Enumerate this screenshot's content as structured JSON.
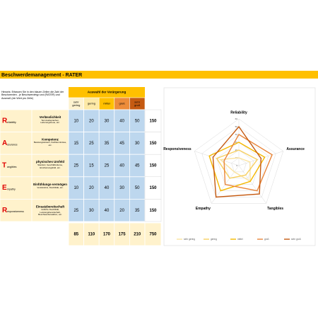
{
  "header": {
    "title": "Beschwerdemanagement - RATER"
  },
  "instructions": "Hinweis: Erfassen Sie in den blauen Zellen die Zahl der Beschwerden - je Beschwerdetyp und (RATER) und Ausmaß (ein Wert pro Zelle)",
  "table": {
    "group_header": "Auswahl der Verärgerung",
    "columns": [
      {
        "label": "sehr gering",
        "color": "#fdf2cf"
      },
      {
        "label": "gering",
        "color": "#fde9a6"
      },
      {
        "label": "mittel",
        "color": "#ffc000"
      },
      {
        "label": "groß",
        "color": "#ed8c3a"
      },
      {
        "label": "sehr groß",
        "color": "#c55a11"
      }
    ],
    "rows": [
      {
        "letter": "R",
        "word": "eliability",
        "title": "Verlässlichkeit",
        "description": "Terminabsprachen, Lieferungstreue, etc.",
        "values": [
          10,
          20,
          30,
          40,
          50
        ],
        "total": 150
      },
      {
        "letter": "A",
        "word": "ssurance",
        "title": "Kompetenz",
        "description": "Beratungswissen, Fachkenntnisse, etc.",
        "values": [
          15,
          25,
          35,
          45,
          30
        ],
        "total": 150
      },
      {
        "letter": "T",
        "word": "angibles",
        "title": "physisches Umfeld",
        "description": "Standort, Geschäftsräume, Erscheinungsbild, etc.",
        "values": [
          25,
          15,
          25,
          40,
          45
        ],
        "total": 150
      },
      {
        "letter": "E",
        "word": "mpathy",
        "title": "Einfühlungs-vermögen",
        "description": "Verständnis, Flexibilität, etc.",
        "values": [
          10,
          20,
          40,
          30,
          50
        ],
        "total": 150
      },
      {
        "letter": "R",
        "word": "esponsiveness",
        "title": "Einsatzbereitschaft",
        "description": "zeitliche Flexibilität, Leistungsbereitschaft, Beschwerdereaktion, etc.",
        "values": [
          25,
          30,
          40,
          20,
          35
        ],
        "total": 150
      }
    ],
    "totals": [
      85,
      110,
      170,
      175,
      210
    ],
    "grand_total": 750
  },
  "chart_data": {
    "type": "radar",
    "categories": [
      "Reliability",
      "Assurance",
      "Tangibles",
      "Empathy",
      "Responsiveness"
    ],
    "series": [
      {
        "name": "sehr gering",
        "color": "#fbe3a0",
        "values": [
          10,
          15,
          25,
          10,
          25
        ]
      },
      {
        "name": "gering",
        "color": "#f7d061",
        "values": [
          20,
          25,
          15,
          20,
          30
        ]
      },
      {
        "name": "mittel",
        "color": "#f5b800",
        "values": [
          30,
          35,
          25,
          40,
          40
        ]
      },
      {
        "name": "groß",
        "color": "#e8853a",
        "values": [
          40,
          45,
          40,
          30,
          20
        ]
      },
      {
        "name": "sehr groß",
        "color": "#c55a11",
        "values": [
          50,
          30,
          45,
          50,
          35
        ]
      }
    ],
    "rlim": [
      0,
      60
    ],
    "rticks": [
      0,
      10,
      20,
      30,
      40,
      50,
      60
    ],
    "grid": true,
    "legend": "bottom"
  }
}
